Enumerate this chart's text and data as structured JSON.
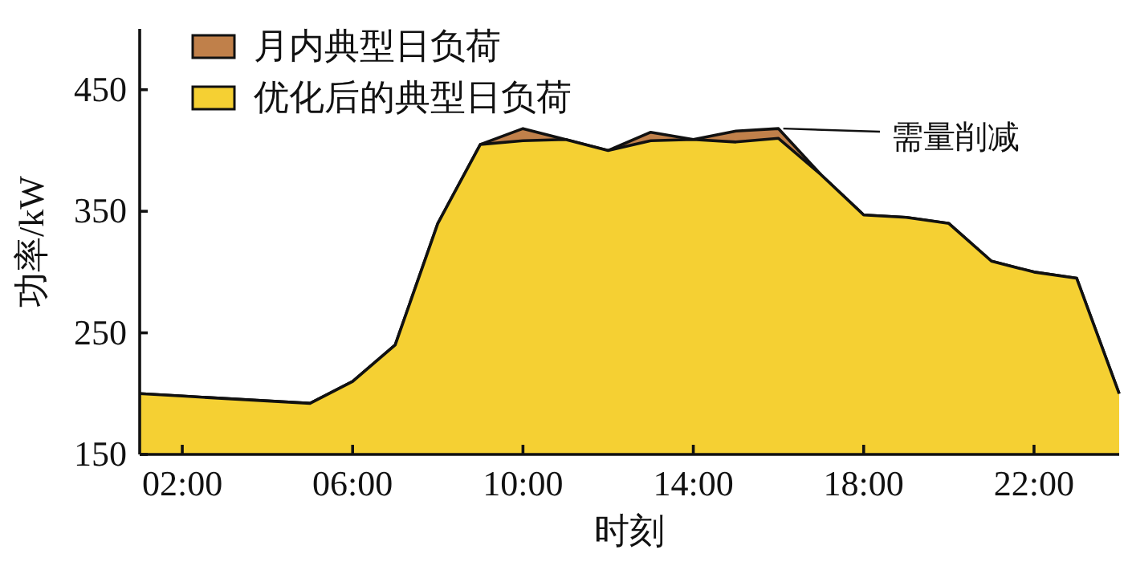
{
  "chart_data": {
    "type": "area",
    "xlabel": "时刻",
    "ylabel": "功率/kW",
    "x": [
      1,
      2,
      3,
      4,
      5,
      6,
      7,
      8,
      9,
      10,
      11,
      12,
      13,
      14,
      15,
      16,
      17,
      18,
      19,
      20,
      21,
      22,
      23,
      24
    ],
    "series": [
      {
        "name": "月内典型日负荷",
        "color": "#c0804a",
        "values": [
          200,
          198,
          196,
          194,
          192,
          210,
          240,
          340,
          405,
          418,
          409,
          400,
          415,
          409,
          416,
          418,
          380,
          347,
          345,
          340,
          309,
          300,
          295,
          200
        ]
      },
      {
        "name": "优化后的典型日负荷",
        "color": "#f5d033",
        "values": [
          200,
          198,
          196,
          194,
          192,
          210,
          240,
          340,
          405,
          408,
          409,
          400,
          408,
          409,
          407,
          410,
          380,
          347,
          345,
          340,
          309,
          300,
          295,
          200
        ]
      }
    ],
    "xlim": [
      1,
      24
    ],
    "xticks": [
      {
        "value": 2,
        "label": "02:00"
      },
      {
        "value": 6,
        "label": "06:00"
      },
      {
        "value": 10,
        "label": "10:00"
      },
      {
        "value": 14,
        "label": "14:00"
      },
      {
        "value": 18,
        "label": "18:00"
      },
      {
        "value": 22,
        "label": "22:00"
      }
    ],
    "ylim": [
      150,
      500
    ],
    "yticks": [
      150,
      250,
      350,
      450
    ],
    "annotations": [
      "需量削减"
    ],
    "legend": "top left",
    "grid": false
  }
}
